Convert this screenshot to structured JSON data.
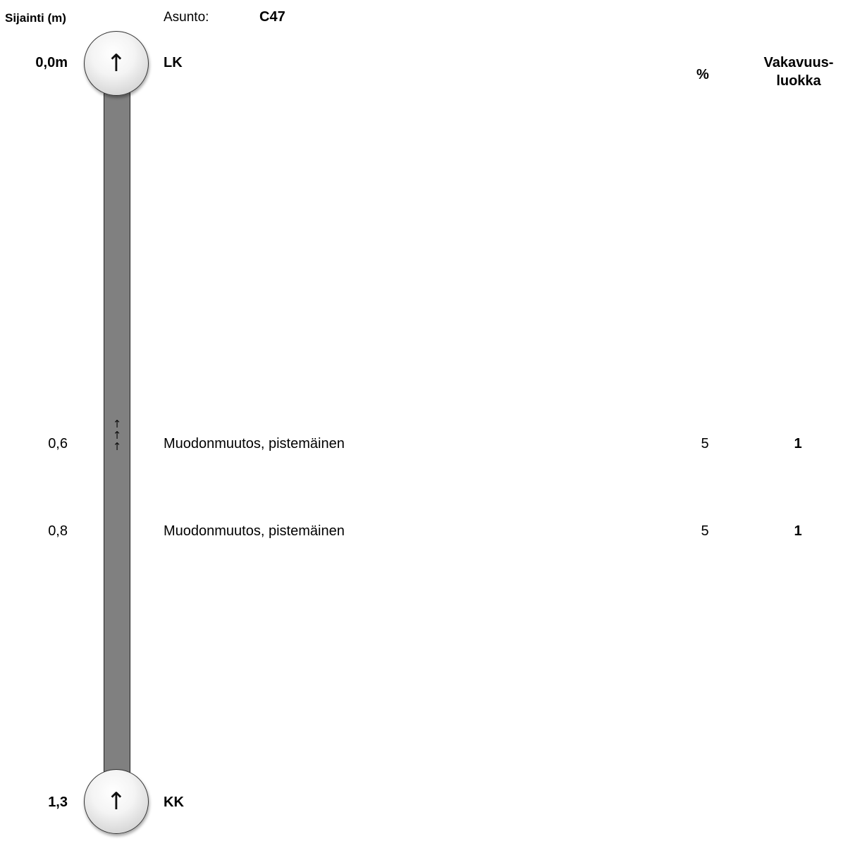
{
  "header": {
    "location_label": "Sijainti (m)",
    "apartment_label": "Asunto:",
    "apartment_value": "C47",
    "percent_label": "%",
    "severity_label_line1": "Vakavuus-",
    "severity_label_line2": "luokka"
  },
  "start": {
    "position": "0,0m",
    "label": "LK",
    "icon": "up-arrow-icon",
    "glyph": "↑"
  },
  "end": {
    "position": "1,3",
    "label": "KK",
    "icon": "up-arrow-icon",
    "glyph": "↑"
  },
  "defects": [
    {
      "position": "0,6",
      "description": "Muodonmuutos, pistemäinen",
      "percent": "5",
      "severity": "1",
      "marker": "triple-up-arrow-icon",
      "marker_glyph": "↑"
    },
    {
      "position": "0,8",
      "description": "Muodonmuutos, pistemäinen",
      "percent": "5",
      "severity": "1"
    }
  ],
  "colors": {
    "pipe": "#808080",
    "node": "#e6e6e6"
  }
}
